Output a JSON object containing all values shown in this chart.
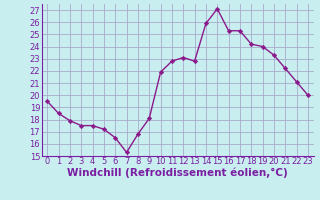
{
  "x": [
    0,
    1,
    2,
    3,
    4,
    5,
    6,
    7,
    8,
    9,
    10,
    11,
    12,
    13,
    14,
    15,
    16,
    17,
    18,
    19,
    20,
    21,
    22,
    23
  ],
  "y": [
    19.5,
    18.5,
    17.9,
    17.5,
    17.5,
    17.2,
    16.5,
    15.3,
    16.8,
    18.1,
    21.9,
    22.8,
    23.1,
    22.8,
    25.9,
    27.1,
    25.3,
    25.3,
    24.2,
    24.0,
    23.3,
    22.2,
    21.1,
    20.0
  ],
  "line_color": "#8b1a8b",
  "marker": "D",
  "marker_size": 2.2,
  "linewidth": 1.0,
  "xlabel": "Windchill (Refroidissement éolien,°C)",
  "ylim": [
    15,
    27.5
  ],
  "xlim": [
    -0.5,
    23.5
  ],
  "yticks": [
    15,
    16,
    17,
    18,
    19,
    20,
    21,
    22,
    23,
    24,
    25,
    26,
    27
  ],
  "xticks": [
    0,
    1,
    2,
    3,
    4,
    5,
    6,
    7,
    8,
    9,
    10,
    11,
    12,
    13,
    14,
    15,
    16,
    17,
    18,
    19,
    20,
    21,
    22,
    23
  ],
  "background_color": "#c8eef0",
  "grid_color": "#aaaacc",
  "tick_color": "#7b1fa2",
  "label_color": "#7b1fa2",
  "xlabel_fontsize": 7.5,
  "tick_fontsize": 6.0,
  "spine_color": "#7b1fa2"
}
